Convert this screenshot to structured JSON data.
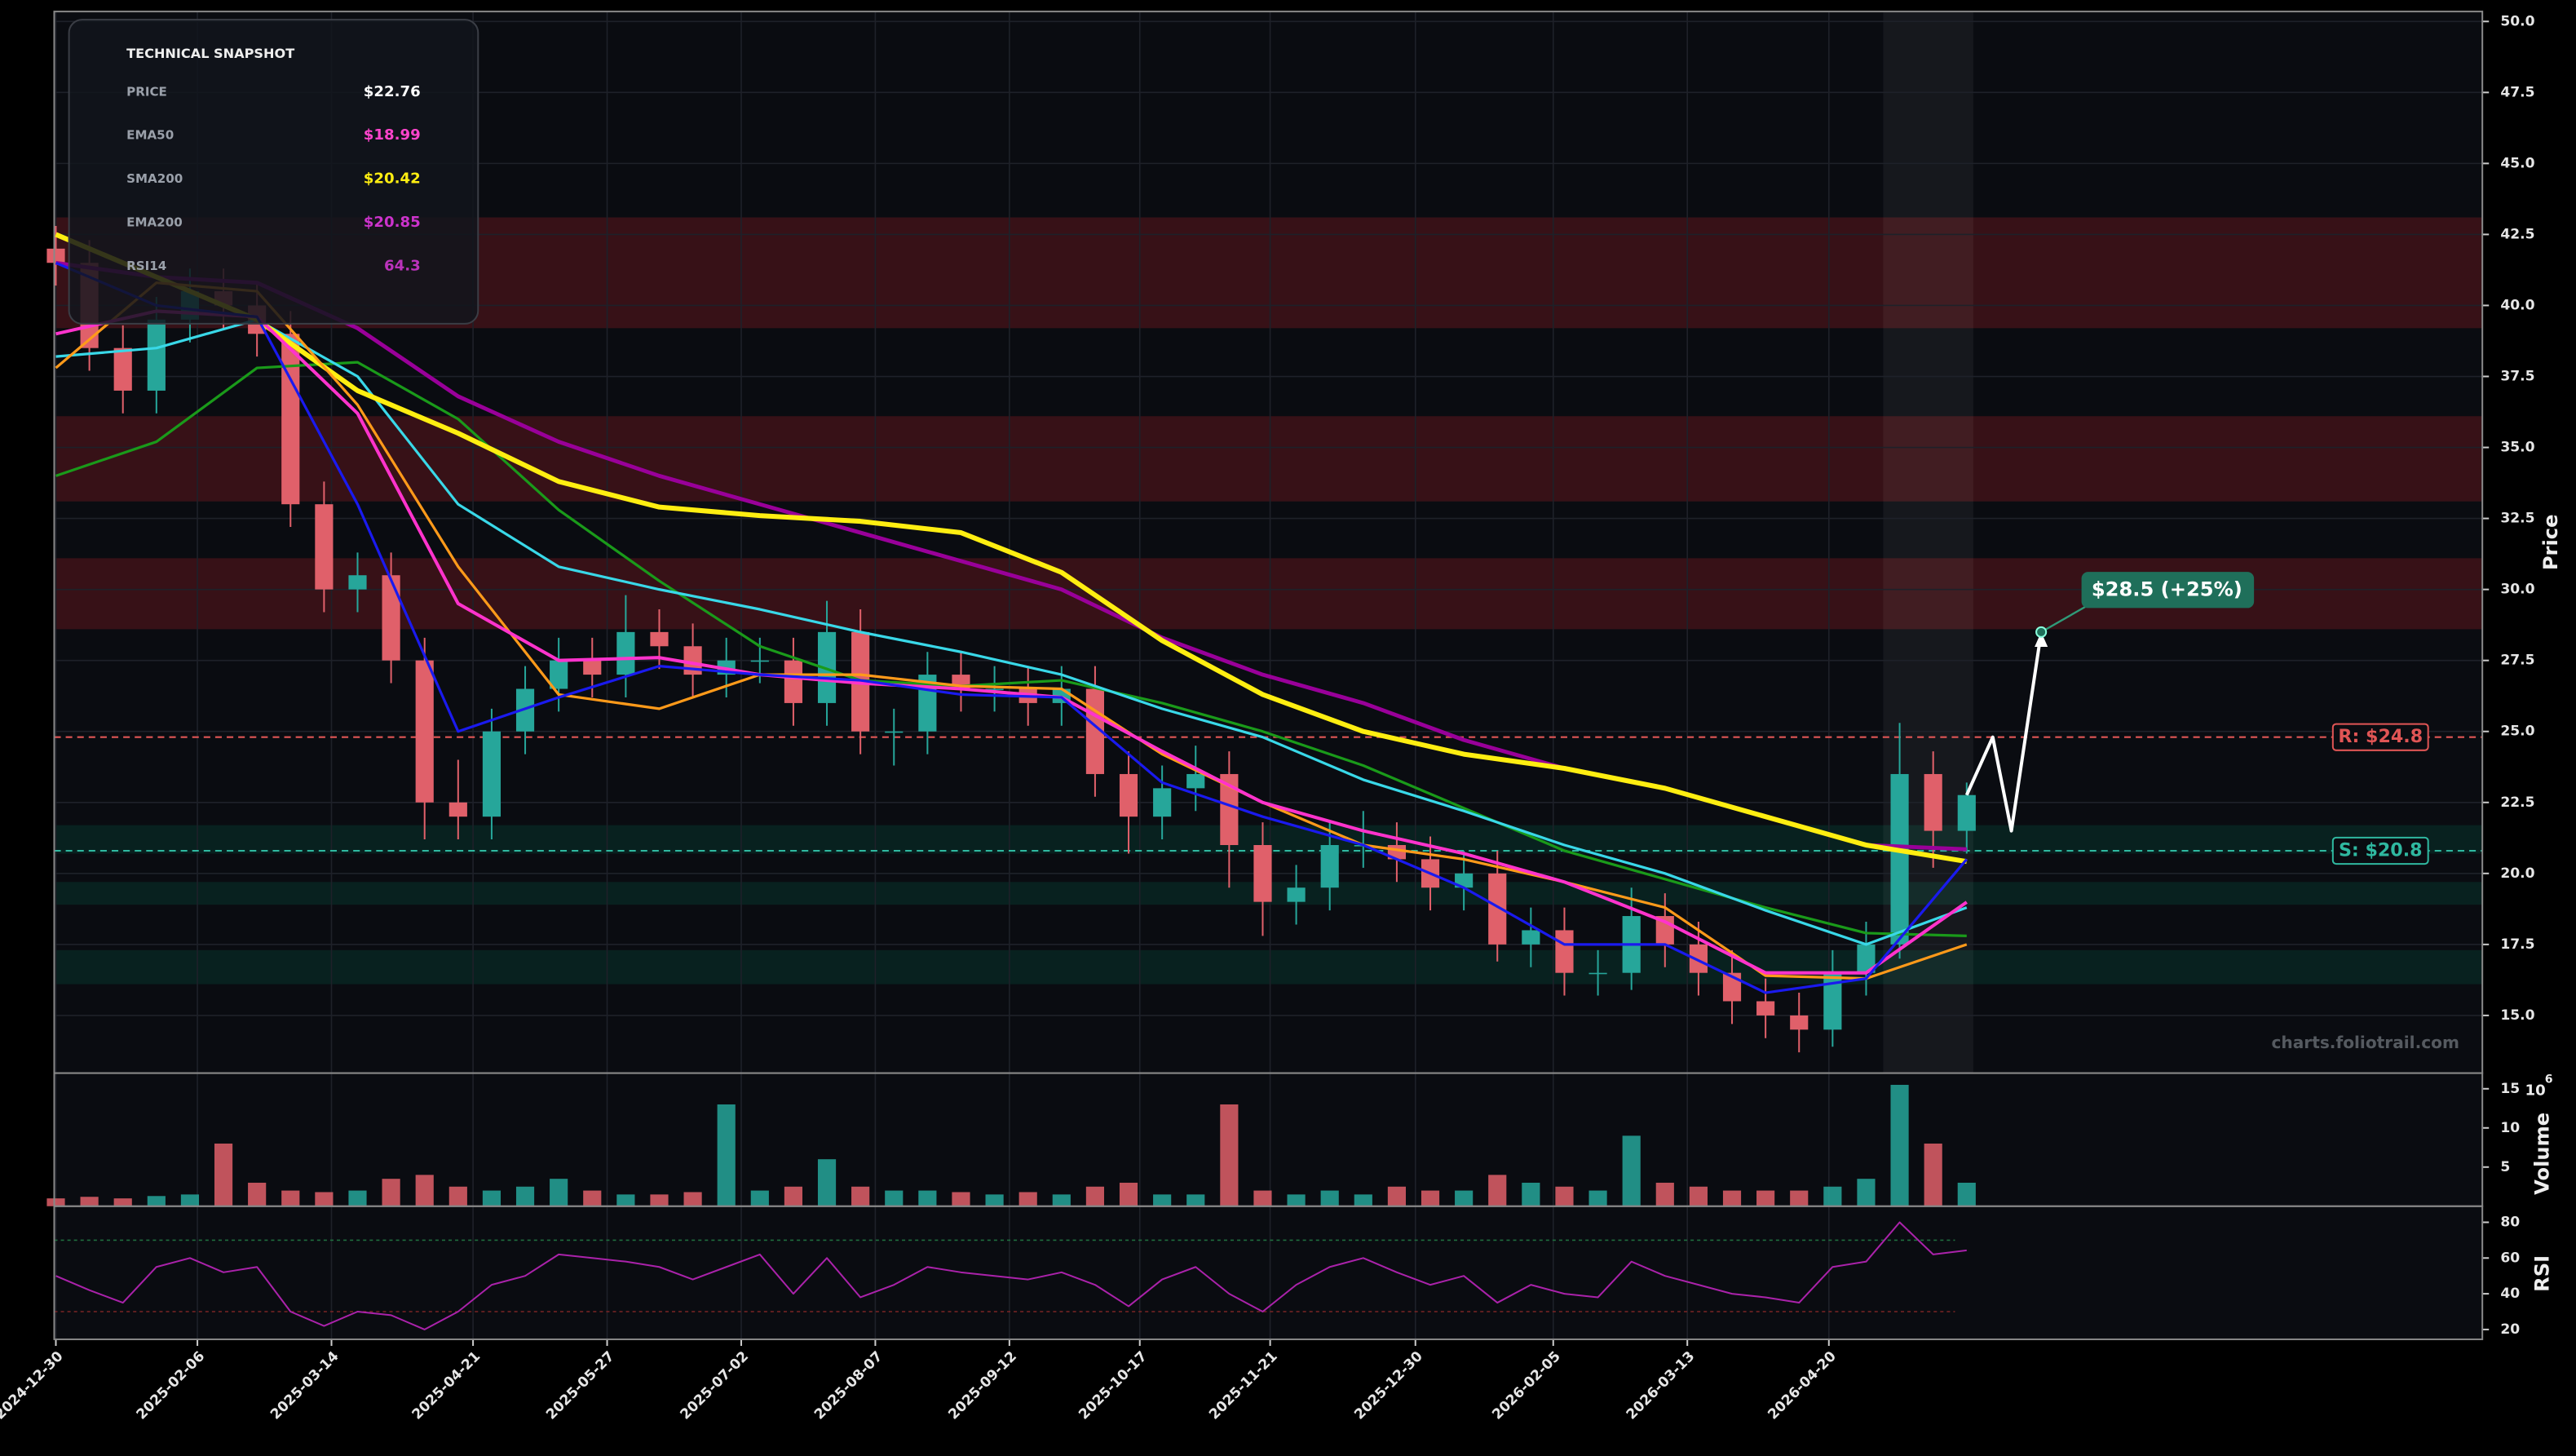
{
  "chart_data": {
    "type": "candlestick",
    "y_label": "Price",
    "watermark": "charts.foliotrail.com",
    "xlim": [
      "2024-12-30",
      "2026-10-12"
    ],
    "xticks": [
      "2024-12-30",
      "2025-02-06",
      "2025-03-14",
      "2025-04-21",
      "2025-05-27",
      "2025-07-02",
      "2025-08-07",
      "2025-09-12",
      "2025-10-17",
      "2025-11-21",
      "2025-12-30",
      "2026-02-05",
      "2026-03-13",
      "2026-04-20"
    ],
    "ylim": [
      12.97,
      50.35
    ],
    "yticks": [
      {
        "value": 15,
        "label": "15.0"
      },
      {
        "value": 17.5,
        "label": "17.5"
      },
      {
        "value": 20,
        "label": "20.0"
      },
      {
        "value": 22.5,
        "label": "22.5"
      },
      {
        "value": 25,
        "label": "25.0"
      },
      {
        "value": 27.5,
        "label": "27.5"
      },
      {
        "value": 30,
        "label": "30.0"
      },
      {
        "value": 32.5,
        "label": "32.5"
      },
      {
        "value": 35,
        "label": "35.0"
      },
      {
        "value": 37.5,
        "label": "37.5"
      },
      {
        "value": 40,
        "label": "40.0"
      },
      {
        "value": 42.5,
        "label": "42.5"
      },
      {
        "value": 45,
        "label": "45.0"
      },
      {
        "value": 47.5,
        "label": "47.5"
      },
      {
        "value": 50,
        "label": "50.0"
      }
    ],
    "grid": true,
    "up_color": "#26a69a",
    "down_color": "#e0606a",
    "x": [
      "2024-12-30",
      "2025-01-08",
      "2025-01-17",
      "2025-01-26",
      "2025-02-04",
      "2025-02-13",
      "2025-02-22",
      "2025-03-03",
      "2025-03-12",
      "2025-03-21",
      "2025-03-30",
      "2025-04-08",
      "2025-04-17",
      "2025-04-26",
      "2025-05-05",
      "2025-05-14",
      "2025-05-23",
      "2025-06-01",
      "2025-06-10",
      "2025-06-19",
      "2025-06-28",
      "2025-07-07",
      "2025-07-16",
      "2025-07-25",
      "2025-08-03",
      "2025-08-12",
      "2025-08-21",
      "2025-08-30",
      "2025-09-08",
      "2025-09-17",
      "2025-09-26",
      "2025-10-05",
      "2025-10-14",
      "2025-10-23",
      "2025-11-01",
      "2025-11-10",
      "2025-11-19",
      "2025-11-28",
      "2025-12-07",
      "2025-12-16",
      "2025-12-25",
      "2026-01-03",
      "2026-01-12",
      "2026-01-21",
      "2026-01-30",
      "2026-02-08",
      "2026-02-17",
      "2026-02-26",
      "2026-03-07",
      "2026-03-16",
      "2026-03-25",
      "2026-04-03",
      "2026-04-12",
      "2026-04-21",
      "2026-04-30",
      "2026-05-09",
      "2026-05-18",
      "2026-05-27"
    ],
    "candles": {
      "open": [
        42,
        41.5,
        38.5,
        37,
        39.5,
        40.5,
        40,
        39,
        33,
        30,
        30.5,
        27.5,
        22.5,
        22,
        25,
        26.5,
        27.5,
        27,
        28.5,
        28,
        27,
        27.5,
        27.5,
        26,
        28.5,
        25,
        25,
        27,
        26.5,
        26.5,
        26,
        26.5,
        23.5,
        22,
        23,
        23.5,
        21,
        19,
        19.5,
        21,
        21,
        20.5,
        19.5,
        20,
        17.5,
        18,
        16.5,
        16.5,
        18.5,
        17.5,
        16.5,
        15.5,
        15,
        14.5,
        16.5,
        17.5,
        23.5,
        21.5
      ],
      "high": [
        42.8,
        42.3,
        39.3,
        40.3,
        41.3,
        41.3,
        40.8,
        39.8,
        33.8,
        31.3,
        31.3,
        28.3,
        24,
        25.8,
        27.3,
        28.3,
        28.3,
        29.8,
        29.3,
        28.8,
        28.3,
        28.3,
        28.3,
        29.6,
        29.3,
        25.8,
        27.8,
        27.8,
        27.3,
        27.3,
        27.3,
        27.3,
        24.3,
        23.8,
        24.5,
        24.3,
        21.8,
        20.3,
        21.8,
        22.2,
        21.8,
        21.3,
        20.8,
        20.8,
        18.8,
        18.8,
        17.3,
        19.5,
        19.3,
        18.3,
        17.3,
        16.3,
        15.8,
        17.3,
        18.3,
        25.3,
        24.3,
        23.2
      ],
      "low": [
        40.7,
        37.7,
        36.2,
        36.2,
        38.7,
        39.2,
        38.2,
        32.2,
        29.2,
        29.2,
        26.7,
        21.2,
        21.2,
        21.2,
        24.2,
        25.7,
        26.2,
        26.2,
        27.2,
        26.2,
        26.2,
        26.7,
        25.2,
        25.2,
        24.2,
        23.8,
        24.2,
        25.7,
        25.7,
        25.2,
        25.2,
        22.7,
        20.7,
        21.2,
        22.2,
        19.5,
        17.8,
        18.2,
        18.7,
        20.2,
        19.7,
        18.7,
        18.7,
        16.9,
        16.7,
        15.7,
        15.7,
        15.9,
        16.7,
        15.7,
        14.7,
        14.2,
        13.7,
        13.9,
        15.7,
        17,
        20.2,
        20.7
      ],
      "close": [
        41.5,
        38.5,
        37,
        39.5,
        40.5,
        40,
        39,
        33,
        30,
        30.5,
        27.5,
        22.5,
        22,
        25,
        26.5,
        27.5,
        27,
        28.5,
        28,
        27,
        27.5,
        27.5,
        26,
        28.5,
        25,
        25,
        27,
        26.5,
        26.5,
        26,
        26.5,
        23.5,
        22,
        23,
        23.5,
        21,
        19,
        19.5,
        21,
        21,
        20.5,
        19.5,
        20,
        17.5,
        18,
        16.5,
        16.5,
        18.5,
        17.5,
        16.5,
        15.5,
        15,
        14.5,
        16.5,
        17.5,
        23.5,
        21.5,
        22.76
      ]
    },
    "moving_averages": {
      "x": [
        "2024-12-30",
        "2025-01-26",
        "2025-02-22",
        "2025-03-21",
        "2025-04-17",
        "2025-05-14",
        "2025-06-10",
        "2025-07-07",
        "2025-08-03",
        "2025-08-30",
        "2025-09-26",
        "2025-10-23",
        "2025-11-19",
        "2025-12-16",
        "2026-01-12",
        "2026-02-08",
        "2026-03-07",
        "2026-04-03",
        "2026-04-30",
        "2026-05-27"
      ],
      "series": [
        {
          "color": "#1a9a1a",
          "width": 1.6,
          "values": [
            34,
            35.2,
            37.8,
            38,
            36,
            32.8,
            30.3,
            28,
            26.8,
            26.6,
            26.8,
            26,
            25,
            23.8,
            22.3,
            20.8,
            19.8,
            18.8,
            17.9,
            17.8
          ]
        },
        {
          "color": "#39d8e8",
          "width": 1.6,
          "values": [
            38.2,
            38.5,
            39.5,
            37.5,
            33,
            30.8,
            30,
            29.3,
            28.5,
            27.8,
            27,
            25.8,
            24.8,
            23.3,
            22.2,
            21,
            20,
            18.7,
            17.5,
            18.8
          ]
        },
        {
          "color": "#990099",
          "width": 2.4,
          "values": [
            41.5,
            41,
            40.8,
            39.2,
            36.8,
            35.2,
            34,
            33,
            32,
            31,
            30,
            28.3,
            27,
            26,
            24.7,
            23.7,
            23,
            22,
            21,
            20.85
          ]
        },
        {
          "color": "#ffee11",
          "width": 3,
          "values": [
            42.5,
            41,
            39.5,
            37,
            35.5,
            33.8,
            32.9,
            32.6,
            32.4,
            32,
            30.6,
            28.2,
            26.3,
            25,
            24.2,
            23.7,
            23,
            22,
            21,
            20.42
          ]
        },
        {
          "color": "#ff9a1a",
          "width": 1.6,
          "values": [
            37.8,
            40.8,
            40.5,
            36.5,
            30.8,
            26.3,
            25.8,
            27,
            27,
            26.6,
            26.5,
            24.2,
            22.5,
            21,
            20.5,
            19.7,
            18.8,
            16.4,
            16.3,
            17.5
          ]
        },
        {
          "color": "#ff33cc",
          "width": 2,
          "values": [
            39,
            39.8,
            39.6,
            36.2,
            29.5,
            27.5,
            27.6,
            27,
            26.7,
            26.5,
            26.2,
            24.3,
            22.5,
            21.5,
            20.7,
            19.7,
            18.3,
            16.5,
            16.5,
            18.99
          ]
        },
        {
          "color": "#1a1aee",
          "width": 1.6,
          "values": [
            41.5,
            40,
            39.6,
            33,
            25,
            26.2,
            27.3,
            27,
            26.8,
            26.3,
            26.2,
            23.2,
            22,
            21,
            19.5,
            17.5,
            17.5,
            15.8,
            16.3,
            20.5
          ]
        }
      ]
    },
    "resistance_zones": [
      [
        39.2,
        43.1
      ],
      [
        33.1,
        36.1
      ],
      [
        28.6,
        31.1
      ]
    ],
    "support_zones": [
      [
        20.7,
        21.7
      ],
      [
        18.9,
        19.7
      ],
      [
        16.1,
        17.3
      ]
    ],
    "resistance": {
      "value": 24.8,
      "label": "R: $24.8",
      "color": "#e05555"
    },
    "support": {
      "value": 20.8,
      "label": "S: $20.8",
      "color": "#2fb8a0"
    },
    "projection": {
      "x": [
        "2026-05-27",
        "2026-06-03",
        "2026-06-08",
        "2026-06-16"
      ],
      "values": [
        22.76,
        24.8,
        21.5,
        28.5
      ],
      "target_label": "$28.5 (+25%)",
      "color": "#ffffff"
    },
    "volume": {
      "label": "Volume",
      "multiplier_base": "10",
      "multiplier_exp": "6",
      "ylim": [
        0,
        17
      ],
      "yticks": [
        5,
        10,
        15
      ],
      "values": [
        1,
        1.2,
        1,
        1.3,
        1.5,
        8,
        3,
        2,
        1.8,
        2,
        3.5,
        4,
        2.5,
        2,
        2.5,
        3.5,
        2,
        1.5,
        1.5,
        1.8,
        13,
        2,
        2.5,
        6,
        2.5,
        2,
        2,
        1.8,
        1.5,
        1.8,
        1.5,
        2.5,
        3,
        1.5,
        1.5,
        13,
        2,
        1.5,
        2,
        1.5,
        2.5,
        2,
        2,
        4,
        3,
        2.5,
        2,
        9,
        3,
        2.5,
        2,
        2,
        2,
        2.5,
        3.5,
        15.5,
        8,
        3
      ]
    },
    "rsi": {
      "label": "RSI",
      "color": "#aa22aa",
      "ylim": [
        14.5,
        89
      ],
      "yticks": [
        20,
        40,
        60,
        80
      ],
      "levels": [
        70,
        30
      ],
      "values": [
        50,
        42,
        35,
        55,
        60,
        52,
        55,
        30,
        22,
        30,
        28,
        20,
        30,
        45,
        50,
        62,
        60,
        58,
        55,
        48,
        55,
        62,
        40,
        60,
        38,
        45,
        55,
        52,
        50,
        48,
        52,
        45,
        33,
        48,
        55,
        40,
        30,
        45,
        55,
        60,
        52,
        45,
        50,
        35,
        45,
        40,
        38,
        58,
        50,
        45,
        40,
        38,
        35,
        55,
        58,
        80,
        62,
        64.3
      ]
    }
  },
  "snapshot": {
    "title": "TECHNICAL SNAPSHOT",
    "rows": [
      {
        "label": "PRICE",
        "value": "$22.76",
        "color": "#ffffff"
      },
      {
        "label": "EMA50",
        "value": "$18.99",
        "color": "#ff44cc"
      },
      {
        "label": "SMA200",
        "value": "$20.42",
        "color": "#ffee11"
      },
      {
        "label": "EMA200",
        "value": "$20.85",
        "color": "#cc33cc"
      },
      {
        "label": "RSI14",
        "value": "64.3",
        "color": "#bb33bb"
      }
    ]
  }
}
